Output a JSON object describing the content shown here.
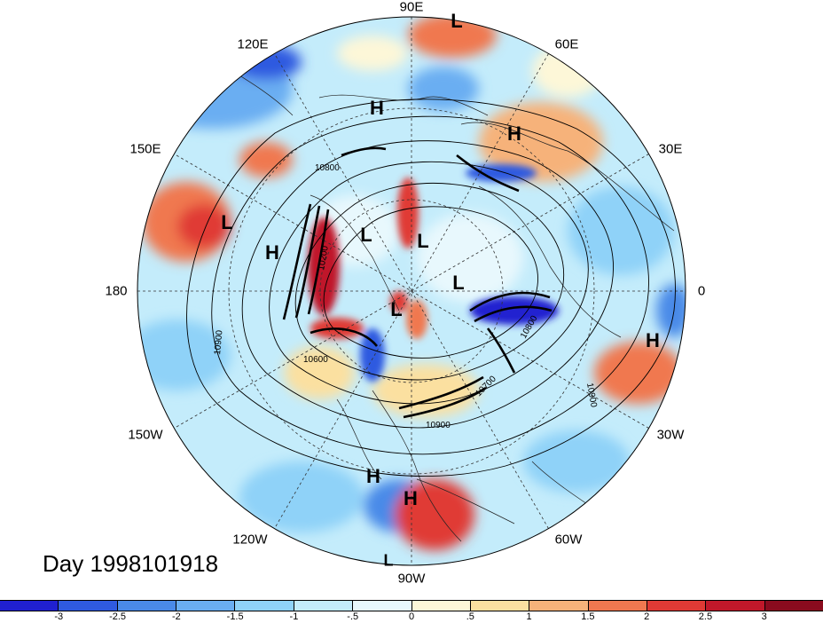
{
  "map": {
    "title": "Day 1998101918",
    "longitude_labels": [
      "90E",
      "60E",
      "30E",
      "0",
      "30W",
      "60W",
      "90W",
      "120W",
      "150W",
      "180",
      "150E",
      "120E"
    ],
    "pressure_centers": [
      {
        "type": "H",
        "name": "high-pressure-marker"
      },
      {
        "type": "L",
        "name": "low-pressure-marker"
      }
    ],
    "contour_labels": [
      "10800",
      "10200",
      "10900",
      "10600",
      "10800",
      "10900",
      "10700",
      "10900"
    ],
    "colorbar": {
      "ticks": [
        "-3",
        "-2.5",
        "-2",
        "-1.5",
        "-1",
        "-.5",
        "0",
        ".5",
        "1",
        "1.5",
        "2",
        "2.5",
        "3"
      ],
      "colors": [
        "#2020d0",
        "#2f5ae0",
        "#4a8ae8",
        "#6aaef2",
        "#8fd2f8",
        "#c4ecfb",
        "#e8f8fd",
        "#fdf7d8",
        "#fbe0a0",
        "#f6b27a",
        "#f07850",
        "#e03a35",
        "#c0182a",
        "#8a0b1e"
      ]
    }
  },
  "highs_lows": [
    "L",
    "H",
    "H",
    "H",
    "L",
    "H",
    "L",
    "L",
    "L",
    "L",
    "H",
    "H",
    "L",
    "L"
  ]
}
